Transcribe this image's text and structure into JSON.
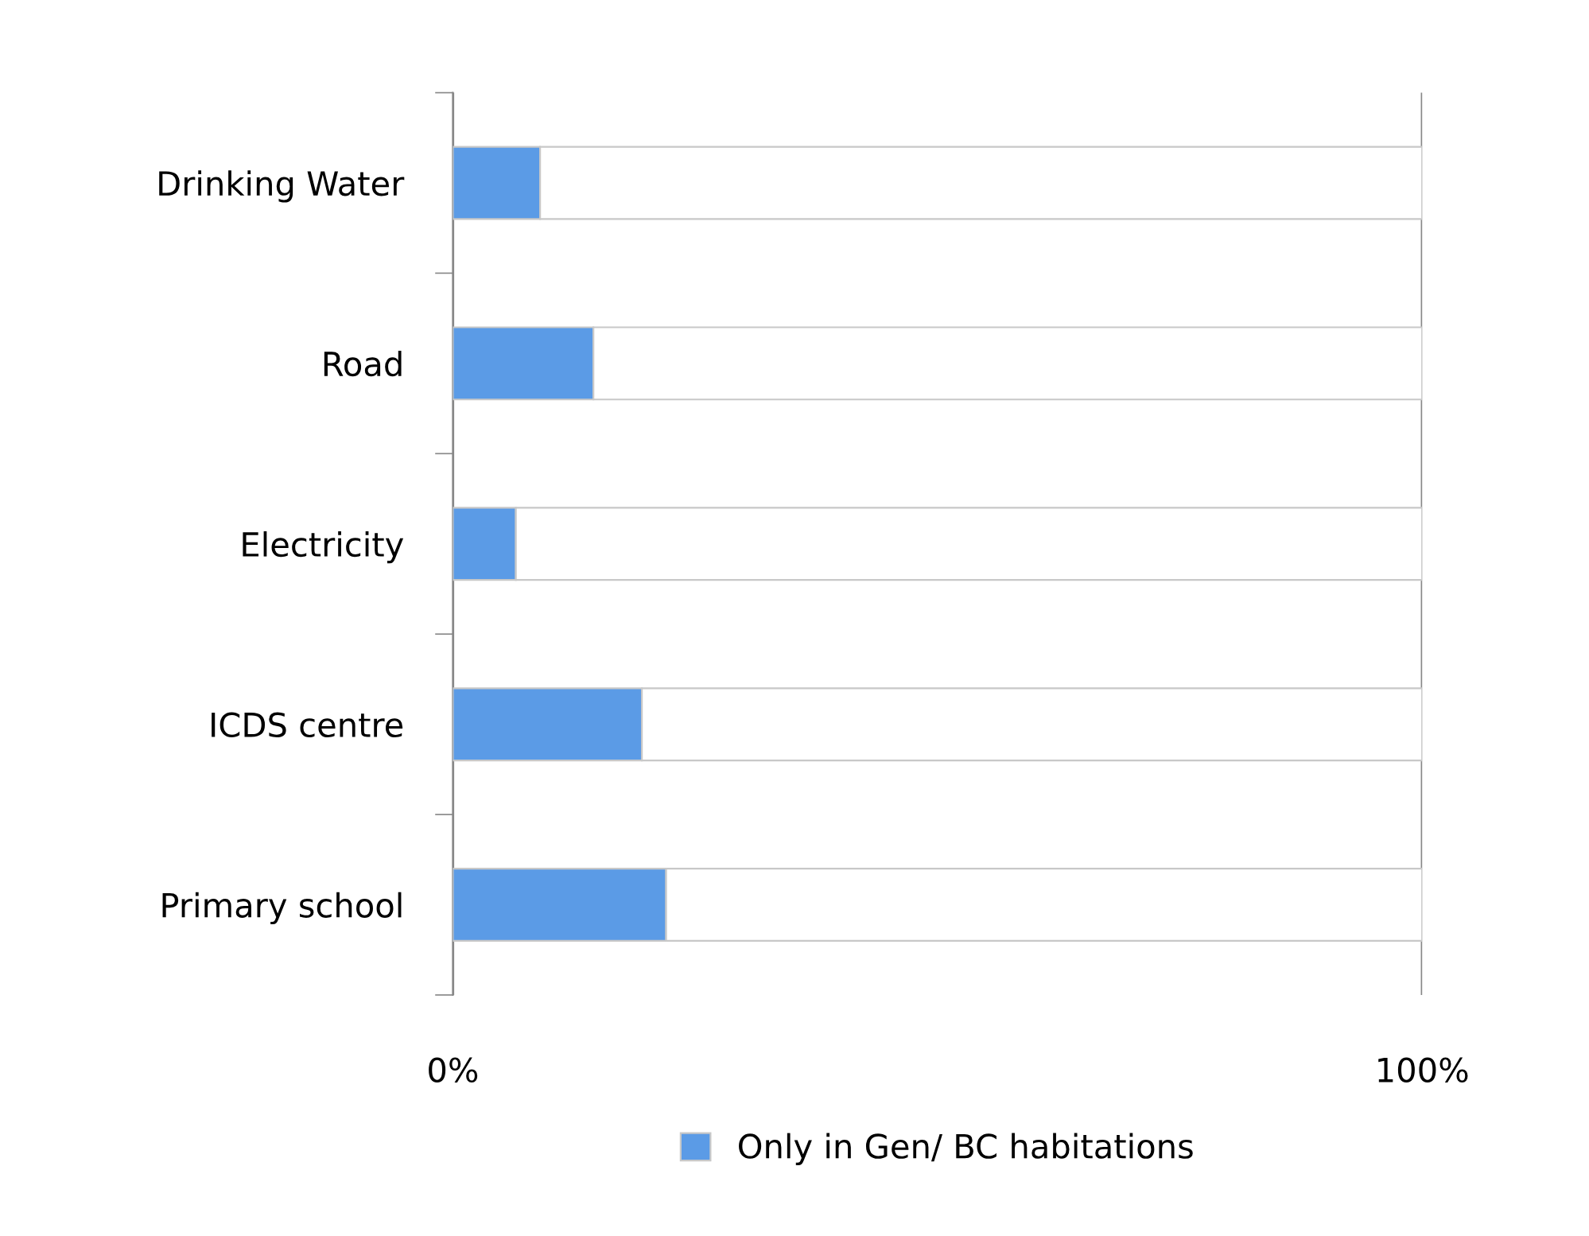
{
  "chart_data": {
    "type": "bar",
    "orientation": "horizontal",
    "stacked": true,
    "categories": [
      "Drinking Water",
      "Road",
      "Electricity",
      "ICDS centre",
      "Primary school"
    ],
    "series": [
      {
        "name": "Only in Gen/ BC habitations",
        "color": "#5b9be6",
        "values": [
          9,
          14.5,
          6.5,
          19.5,
          22
        ]
      },
      {
        "color": "#ffffff",
        "values": [
          91,
          85.5,
          93.5,
          80.5,
          78
        ]
      }
    ],
    "xlim": [
      0,
      100
    ],
    "xticks": [
      {
        "value": 0,
        "label": "0%"
      },
      {
        "value": 100,
        "label": "100%"
      }
    ],
    "grid": "x",
    "legend": "bottom"
  }
}
